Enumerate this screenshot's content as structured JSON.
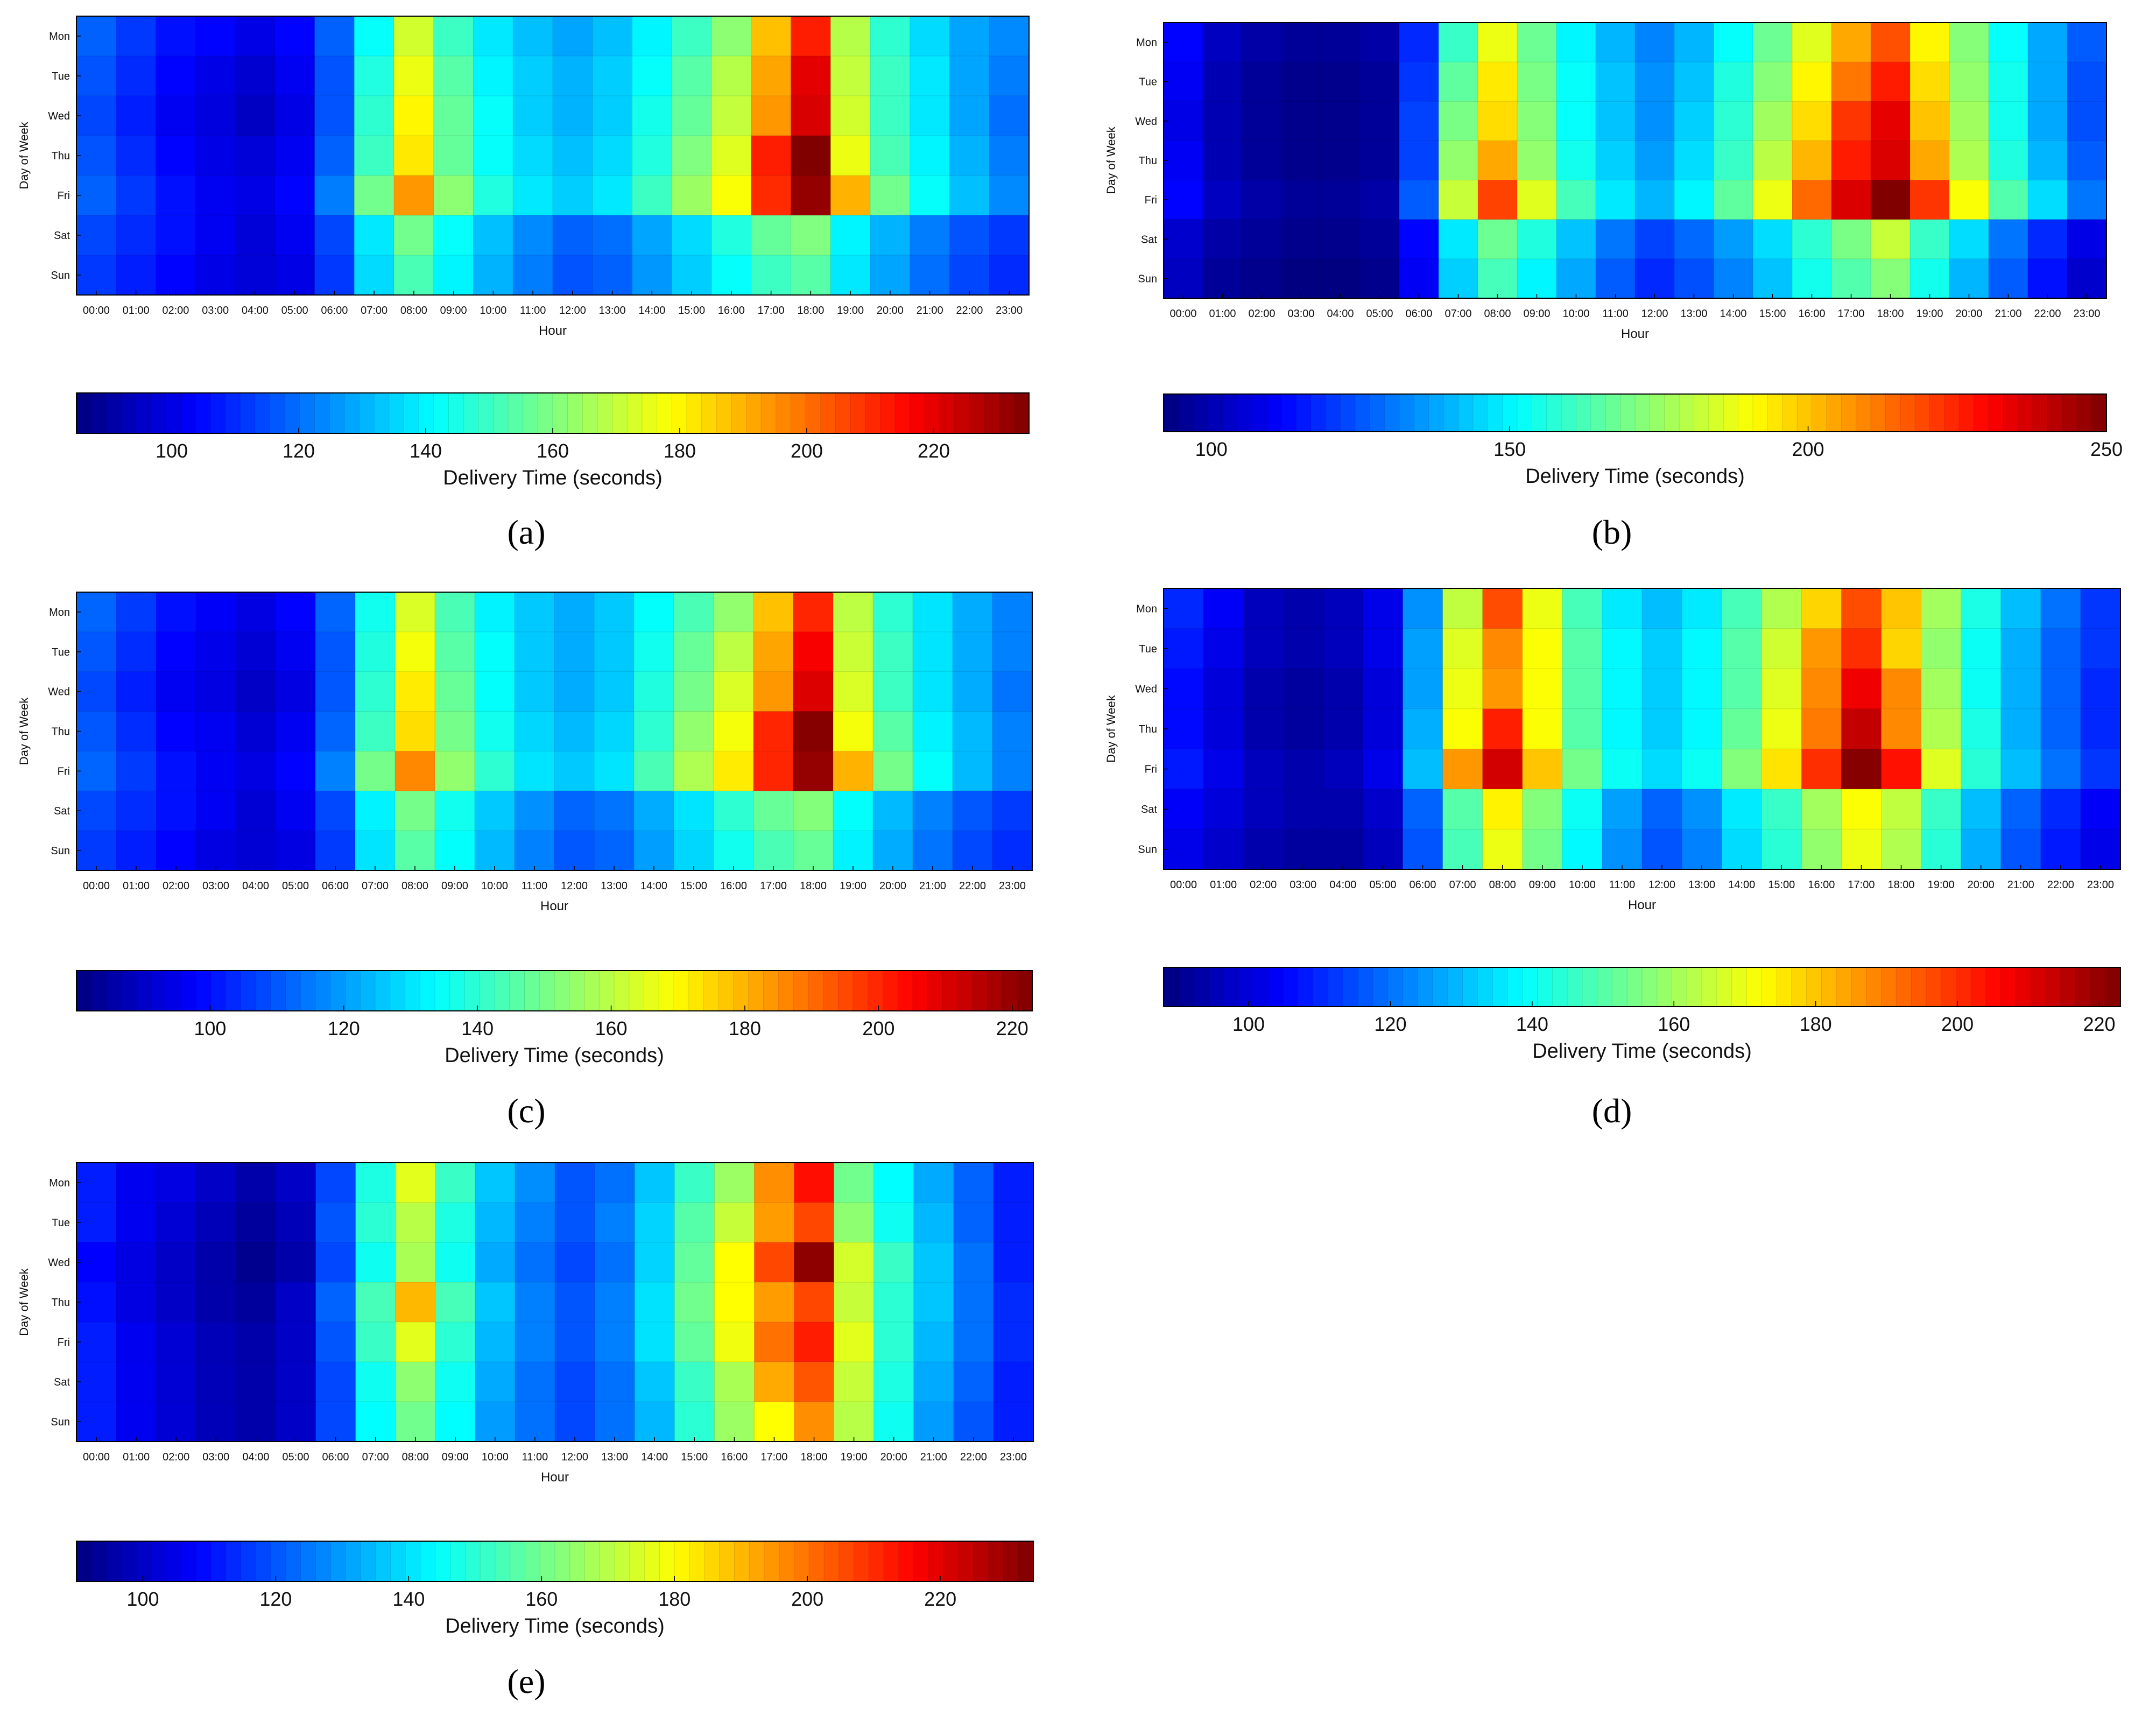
{
  "chart_data": [
    {
      "panel": "(a)",
      "type": "heatmap",
      "xlabel": "Hour",
      "ylabel": "Day of Week",
      "days": [
        "Mon",
        "Tue",
        "Wed",
        "Thu",
        "Fri",
        "Sat",
        "Sun"
      ],
      "hours": [
        "00:00",
        "01:00",
        "02:00",
        "03:00",
        "04:00",
        "05:00",
        "06:00",
        "07:00",
        "08:00",
        "09:00",
        "10:00",
        "11:00",
        "12:00",
        "13:00",
        "14:00",
        "15:00",
        "16:00",
        "17:00",
        "18:00",
        "19:00",
        "20:00",
        "21:00",
        "22:00",
        "23:00"
      ],
      "colorbar": {
        "label": "Delivery Time (seconds)",
        "min": 85,
        "max": 235,
        "ticks": [
          100,
          120,
          140,
          160,
          180,
          200,
          220
        ]
      },
      "values": [
        [
          118,
          112,
          106,
          104,
          100,
          104,
          118,
          142,
          172,
          150,
          138,
          132,
          128,
          132,
          140,
          150,
          162,
          188,
          212,
          168,
          148,
          136,
          128,
          124
        ],
        [
          116,
          110,
          104,
          100,
          97,
          102,
          116,
          146,
          176,
          154,
          140,
          134,
          130,
          134,
          142,
          154,
          168,
          192,
          220,
          170,
          150,
          138,
          128,
          122
        ],
        [
          114,
          108,
          102,
          99,
          95,
          100,
          116,
          148,
          180,
          156,
          142,
          134,
          130,
          134,
          144,
          156,
          170,
          194,
          222,
          172,
          150,
          138,
          128,
          120
        ],
        [
          116,
          110,
          104,
          100,
          98,
          102,
          118,
          150,
          182,
          156,
          142,
          136,
          132,
          136,
          146,
          160,
          174,
          212,
          235,
          176,
          152,
          140,
          130,
          122
        ],
        [
          118,
          112,
          106,
          102,
          100,
          104,
          122,
          158,
          194,
          162,
          146,
          138,
          134,
          138,
          150,
          164,
          178,
          210,
          232,
          190,
          158,
          142,
          132,
          124
        ],
        [
          114,
          110,
          106,
          102,
          98,
          102,
          114,
          138,
          158,
          142,
          132,
          124,
          118,
          120,
          128,
          136,
          146,
          156,
          160,
          140,
          130,
          122,
          116,
          112
        ],
        [
          112,
          108,
          104,
          100,
          98,
          100,
          112,
          136,
          152,
          140,
          130,
          122,
          116,
          118,
          126,
          134,
          142,
          150,
          154,
          138,
          128,
          120,
          114,
          110
        ]
      ]
    },
    {
      "panel": "(b)",
      "type": "heatmap",
      "xlabel": "Hour",
      "ylabel": "Day of Week",
      "days": [
        "Mon",
        "Tue",
        "Wed",
        "Thu",
        "Fri",
        "Sat",
        "Sun"
      ],
      "hours": [
        "00:00",
        "01:00",
        "02:00",
        "03:00",
        "04:00",
        "05:00",
        "06:00",
        "07:00",
        "08:00",
        "09:00",
        "10:00",
        "11:00",
        "12:00",
        "13:00",
        "14:00",
        "15:00",
        "16:00",
        "17:00",
        "18:00",
        "19:00",
        "20:00",
        "21:00",
        "22:00",
        "23:00"
      ],
      "colorbar": {
        "label": "Delivery Time (seconds)",
        "min": 92,
        "max": 250,
        "ticks": [
          100,
          150,
          200,
          250
        ]
      },
      "values": [
        [
          112,
          102,
          98,
          96,
          96,
          98,
          118,
          160,
          188,
          168,
          150,
          140,
          132,
          140,
          152,
          168,
          186,
          204,
          218,
          192,
          172,
          152,
          138,
          126
        ],
        [
          110,
          100,
          96,
          94,
          94,
          96,
          120,
          166,
          194,
          170,
          152,
          142,
          134,
          142,
          156,
          172,
          192,
          212,
          226,
          196,
          174,
          154,
          138,
          124
        ],
        [
          108,
          100,
          96,
          94,
          94,
          96,
          122,
          170,
          196,
          172,
          152,
          142,
          134,
          144,
          158,
          176,
          196,
          222,
          234,
          200,
          176,
          154,
          138,
          124
        ],
        [
          110,
          100,
          96,
          94,
          94,
          96,
          122,
          174,
          204,
          174,
          154,
          144,
          136,
          146,
          160,
          180,
          202,
          226,
          236,
          204,
          178,
          156,
          140,
          126
        ],
        [
          112,
          102,
          98,
          96,
          96,
          98,
          126,
          182,
          220,
          186,
          162,
          148,
          140,
          150,
          166,
          188,
          214,
          236,
          250,
          222,
          190,
          164,
          146,
          130
        ],
        [
          104,
          98,
          96,
          94,
          94,
          96,
          112,
          148,
          168,
          156,
          142,
          130,
          122,
          128,
          136,
          146,
          158,
          170,
          182,
          160,
          146,
          130,
          118,
          108
        ],
        [
          102,
          96,
          94,
          92,
          92,
          94,
          110,
          144,
          162,
          150,
          138,
          126,
          118,
          124,
          132,
          142,
          154,
          164,
          172,
          154,
          140,
          126,
          114,
          104
        ]
      ]
    },
    {
      "panel": "(c)",
      "type": "heatmap",
      "xlabel": "Hour",
      "ylabel": "Day of Week",
      "days": [
        "Mon",
        "Tue",
        "Wed",
        "Thu",
        "Fri",
        "Sat",
        "Sun"
      ],
      "hours": [
        "00:00",
        "01:00",
        "02:00",
        "03:00",
        "04:00",
        "05:00",
        "06:00",
        "07:00",
        "08:00",
        "09:00",
        "10:00",
        "11:00",
        "12:00",
        "13:00",
        "14:00",
        "15:00",
        "16:00",
        "17:00",
        "18:00",
        "19:00",
        "20:00",
        "21:00",
        "22:00",
        "23:00"
      ],
      "colorbar": {
        "label": "Delivery Time (seconds)",
        "min": 80,
        "max": 223,
        "ticks": [
          100,
          120,
          140,
          160,
          180,
          200,
          220
        ]
      },
      "values": [
        [
          112,
          106,
          100,
          97,
          94,
          98,
          112,
          136,
          164,
          144,
          132,
          126,
          122,
          126,
          134,
          144,
          154,
          178,
          200,
          160,
          140,
          130,
          122,
          116
        ],
        [
          110,
          104,
          98,
          95,
          92,
          96,
          110,
          138,
          168,
          146,
          134,
          126,
          122,
          126,
          136,
          148,
          160,
          182,
          206,
          162,
          142,
          130,
          122,
          116
        ],
        [
          108,
          102,
          96,
          94,
          90,
          94,
          110,
          140,
          172,
          148,
          134,
          126,
          122,
          126,
          138,
          150,
          164,
          184,
          210,
          164,
          142,
          130,
          122,
          114
        ],
        [
          110,
          104,
          98,
          96,
          92,
          96,
          112,
          142,
          174,
          150,
          136,
          128,
          124,
          128,
          140,
          154,
          168,
          200,
          222,
          168,
          146,
          132,
          124,
          116
        ],
        [
          112,
          106,
          100,
          96,
          94,
          98,
          116,
          150,
          186,
          154,
          140,
          130,
          126,
          130,
          144,
          158,
          172,
          200,
          220,
          180,
          150,
          134,
          124,
          116
        ],
        [
          108,
          104,
          100,
          96,
          92,
          96,
          108,
          132,
          150,
          136,
          126,
          118,
          112,
          114,
          122,
          130,
          140,
          148,
          152,
          134,
          124,
          116,
          110,
          106
        ],
        [
          106,
          102,
          98,
          94,
          92,
          94,
          106,
          130,
          146,
          134,
          124,
          116,
          110,
          112,
          120,
          128,
          136,
          144,
          148,
          132,
          122,
          114,
          108,
          104
        ]
      ]
    },
    {
      "panel": "(d)",
      "type": "heatmap",
      "xlabel": "Hour",
      "ylabel": "Day of Week",
      "days": [
        "Mon",
        "Tue",
        "Wed",
        "Thu",
        "Fri",
        "Sat",
        "Sun"
      ],
      "hours": [
        "00:00",
        "01:00",
        "02:00",
        "03:00",
        "04:00",
        "05:00",
        "06:00",
        "07:00",
        "08:00",
        "09:00",
        "10:00",
        "11:00",
        "12:00",
        "13:00",
        "14:00",
        "15:00",
        "16:00",
        "17:00",
        "18:00",
        "19:00",
        "20:00",
        "21:00",
        "22:00",
        "23:00"
      ],
      "colorbar": {
        "label": "Delivery Time (seconds)",
        "min": 88,
        "max": 223,
        "ticks": [
          100,
          120,
          140,
          160,
          180,
          200,
          220
        ]
      },
      "values": [
        [
          110,
          104,
          96,
          94,
          96,
          102,
          124,
          164,
          196,
          170,
          148,
          136,
          130,
          136,
          148,
          162,
          178,
          196,
          180,
          160,
          142,
          130,
          120,
          112
        ],
        [
          108,
          102,
          96,
          94,
          96,
          102,
          126,
          168,
          188,
          172,
          150,
          138,
          132,
          138,
          150,
          166,
          186,
          200,
          178,
          158,
          140,
          128,
          118,
          112
        ],
        [
          106,
          100,
          94,
          92,
          94,
          100,
          126,
          170,
          186,
          172,
          150,
          138,
          132,
          138,
          150,
          168,
          188,
          208,
          188,
          160,
          140,
          128,
          118,
          110
        ],
        [
          106,
          100,
          94,
          92,
          94,
          100,
          128,
          172,
          202,
          172,
          150,
          138,
          132,
          138,
          152,
          170,
          190,
          214,
          188,
          162,
          142,
          128,
          118,
          110
        ],
        [
          108,
          102,
          96,
          94,
          96,
          102,
          130,
          186,
          212,
          180,
          154,
          140,
          134,
          140,
          156,
          176,
          200,
          222,
          204,
          168,
          144,
          130,
          120,
          112
        ],
        [
          104,
          100,
          96,
          94,
          94,
          98,
          118,
          150,
          174,
          156,
          140,
          126,
          118,
          124,
          136,
          146,
          160,
          172,
          164,
          146,
          130,
          118,
          110,
          104
        ],
        [
          102,
          98,
          94,
          92,
          92,
          96,
          116,
          148,
          170,
          154,
          138,
          124,
          116,
          122,
          134,
          144,
          158,
          170,
          162,
          144,
          128,
          116,
          108,
          102
        ]
      ]
    },
    {
      "panel": "(e)",
      "type": "heatmap",
      "xlabel": "Hour",
      "ylabel": "Day of Week",
      "days": [
        "Mon",
        "Tue",
        "Wed",
        "Thu",
        "Fri",
        "Sat",
        "Sun"
      ],
      "hours": [
        "00:00",
        "01:00",
        "02:00",
        "03:00",
        "04:00",
        "05:00",
        "06:00",
        "07:00",
        "08:00",
        "09:00",
        "10:00",
        "11:00",
        "12:00",
        "13:00",
        "14:00",
        "15:00",
        "16:00",
        "17:00",
        "18:00",
        "19:00",
        "20:00",
        "21:00",
        "22:00",
        "23:00"
      ],
      "colorbar": {
        "label": "Delivery Time (seconds)",
        "min": 90,
        "max": 234,
        "ticks": [
          100,
          120,
          140,
          160,
          180,
          200,
          220
        ]
      },
      "values": [
        [
          112,
          106,
          104,
          100,
          96,
          100,
          118,
          148,
          176,
          152,
          136,
          128,
          120,
          124,
          136,
          152,
          166,
          196,
          214,
          160,
          144,
          132,
          122,
          112
        ],
        [
          112,
          106,
          102,
          98,
          94,
          98,
          120,
          150,
          170,
          148,
          134,
          126,
          120,
          126,
          138,
          156,
          172,
          194,
          206,
          164,
          146,
          134,
          122,
          112
        ],
        [
          108,
          104,
          100,
          96,
          92,
          96,
          118,
          146,
          168,
          146,
          132,
          124,
          118,
          124,
          138,
          158,
          180,
          206,
          232,
          174,
          152,
          136,
          124,
          112
        ],
        [
          110,
          104,
          100,
          96,
          94,
          100,
          122,
          154,
          190,
          154,
          136,
          126,
          120,
          126,
          140,
          160,
          180,
          194,
          206,
          172,
          150,
          136,
          124,
          114
        ],
        [
          112,
          106,
          102,
          98,
          96,
          100,
          120,
          152,
          176,
          150,
          134,
          126,
          120,
          126,
          140,
          158,
          178,
          200,
          212,
          176,
          150,
          134,
          124,
          114
        ],
        [
          112,
          106,
          102,
          98,
          96,
          100,
          118,
          146,
          164,
          146,
          132,
          124,
          118,
          124,
          136,
          152,
          168,
          192,
          204,
          172,
          148,
          132,
          122,
          112
        ],
        [
          112,
          106,
          102,
          98,
          96,
          100,
          118,
          144,
          160,
          144,
          130,
          124,
          118,
          124,
          134,
          150,
          166,
          180,
          196,
          170,
          146,
          130,
          120,
          112
        ]
      ]
    }
  ]
}
